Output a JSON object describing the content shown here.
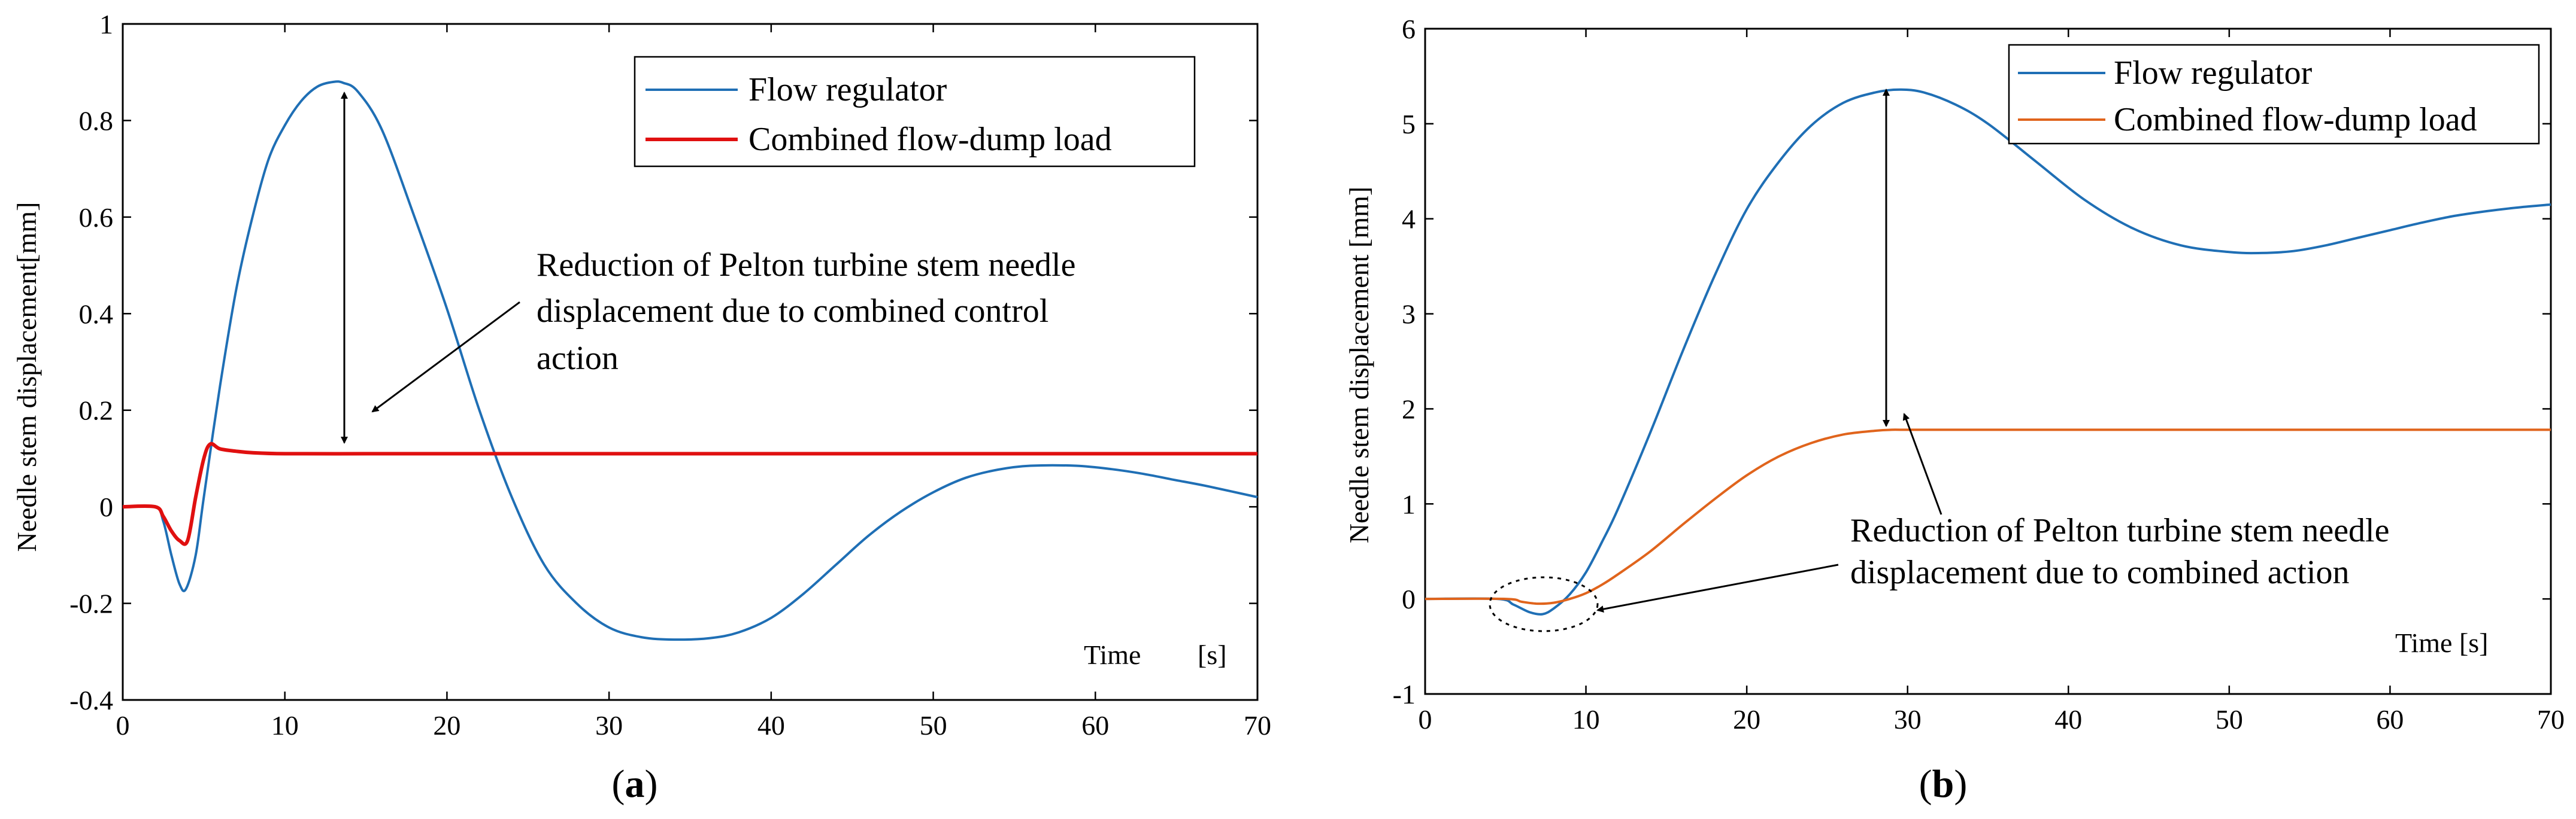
{
  "chart_data": [
    {
      "type": "line",
      "panel": "(a)",
      "panel_prefix": "(",
      "panel_letter": "a",
      "panel_suffix": ")",
      "xlabel": "",
      "time_label": "Time",
      "time_unit": "[s]",
      "ylabel": "Needle stem displacement[mm]",
      "xlim": [
        0,
        70
      ],
      "ylim": [
        -0.4,
        1
      ],
      "xticks": [
        0,
        10,
        20,
        30,
        40,
        50,
        60,
        70
      ],
      "xtick_labels": [
        "0",
        "10",
        "20",
        "30",
        "40",
        "50",
        "60",
        "70"
      ],
      "yticks": [
        -0.4,
        -0.2,
        0,
        0.2,
        0.4,
        0.6,
        0.8,
        1
      ],
      "ytick_labels": [
        "-0.4",
        "-0.2",
        "0",
        "0.2",
        "0.4",
        "0.6",
        "0.8",
        "1"
      ],
      "grid": false,
      "legend_position": "top-right",
      "series": [
        {
          "name": "Flow regulator",
          "color": "#1f6fb5",
          "x": [
            0,
            2,
            2.5,
            3,
            3.5,
            3.9,
            4.5,
            5,
            6,
            7,
            8,
            9,
            10,
            11,
            12,
            13,
            13.6,
            14.5,
            16,
            18,
            20,
            22,
            24,
            26,
            28,
            30,
            32,
            34,
            36.2,
            38,
            40,
            42,
            44,
            46,
            48,
            50,
            52,
            54,
            56,
            58.8,
            61,
            63,
            65,
            67,
            70
          ],
          "values": [
            0,
            0,
            -0.03,
            -0.1,
            -0.16,
            -0.17,
            -0.1,
            0.02,
            0.25,
            0.45,
            0.6,
            0.72,
            0.79,
            0.84,
            0.87,
            0.88,
            0.878,
            0.86,
            0.78,
            0.6,
            0.41,
            0.2,
            0.02,
            -0.12,
            -0.2,
            -0.25,
            -0.27,
            -0.275,
            -0.272,
            -0.26,
            -0.23,
            -0.18,
            -0.12,
            -0.06,
            -0.01,
            0.03,
            0.06,
            0.077,
            0.085,
            0.085,
            0.078,
            0.068,
            0.055,
            0.042,
            0.02
          ]
        },
        {
          "name": "Combined flow-dump load",
          "color": "#e01010",
          "x": [
            0,
            2,
            2.5,
            3,
            3.5,
            4,
            4.5,
            5,
            5.4,
            6,
            7,
            8,
            10,
            15,
            20,
            30,
            40,
            50,
            60,
            70
          ],
          "values": [
            0,
            0,
            -0.02,
            -0.05,
            -0.07,
            -0.07,
            0.02,
            0.1,
            0.13,
            0.12,
            0.115,
            0.112,
            0.11,
            0.11,
            0.11,
            0.11,
            0.11,
            0.11,
            0.11,
            0.11
          ]
        }
      ],
      "annotation_lines": [
        "Reduction of Pelton turbine stem needle",
        "displacement due to combined control",
        "action"
      ]
    },
    {
      "type": "line",
      "panel": "(b)",
      "panel_prefix": "(",
      "panel_letter": "b",
      "panel_suffix": ")",
      "xlabel": "",
      "time_label": "Time [s]",
      "ylabel": "Needle stem displacement [mm]",
      "xlim": [
        0,
        70
      ],
      "ylim": [
        -1,
        6
      ],
      "xticks": [
        0,
        10,
        20,
        30,
        40,
        50,
        60,
        70
      ],
      "xtick_labels": [
        "0",
        "10",
        "20",
        "30",
        "40",
        "50",
        "60",
        "70"
      ],
      "yticks": [
        -1,
        0,
        1,
        2,
        3,
        4,
        5,
        6
      ],
      "ytick_labels": [
        "-1",
        "0",
        "1",
        "2",
        "3",
        "4",
        "5",
        "6"
      ],
      "grid": false,
      "legend_position": "top-right",
      "series": [
        {
          "name": "Flow regulator",
          "color": "#1f6fb5",
          "x": [
            0,
            4.5,
            5.5,
            6.5,
            7.3,
            8,
            9,
            10,
            11,
            12,
            14,
            16,
            18,
            20,
            22,
            24,
            26,
            28,
            29.5,
            31,
            33,
            35,
            38,
            41,
            44,
            47,
            50,
            52,
            54,
            56,
            58,
            60,
            62,
            64,
            66,
            68,
            70
          ],
          "values": [
            0,
            0,
            -0.06,
            -0.14,
            -0.16,
            -0.1,
            0.05,
            0.28,
            0.6,
            0.95,
            1.75,
            2.6,
            3.4,
            4.1,
            4.6,
            4.98,
            5.22,
            5.33,
            5.36,
            5.33,
            5.2,
            5.0,
            4.6,
            4.2,
            3.9,
            3.72,
            3.65,
            3.64,
            3.66,
            3.72,
            3.8,
            3.88,
            3.96,
            4.03,
            4.08,
            4.12,
            4.15
          ]
        },
        {
          "name": "Combined flow-dump load",
          "color": "#e0641c",
          "x": [
            0,
            5,
            6,
            7,
            8,
            9,
            10,
            11,
            12,
            14,
            16,
            18,
            20,
            22,
            24,
            26,
            28,
            29,
            30,
            35,
            40,
            50,
            60,
            70
          ],
          "values": [
            0,
            0,
            -0.03,
            -0.05,
            -0.04,
            0.0,
            0.06,
            0.15,
            0.26,
            0.5,
            0.78,
            1.05,
            1.3,
            1.5,
            1.64,
            1.73,
            1.77,
            1.78,
            1.78,
            1.78,
            1.78,
            1.78,
            1.78,
            1.78
          ]
        }
      ],
      "annotation_lines": [
        "Reduction of Pelton turbine stem needle",
        "displacement due to combined action"
      ]
    }
  ]
}
